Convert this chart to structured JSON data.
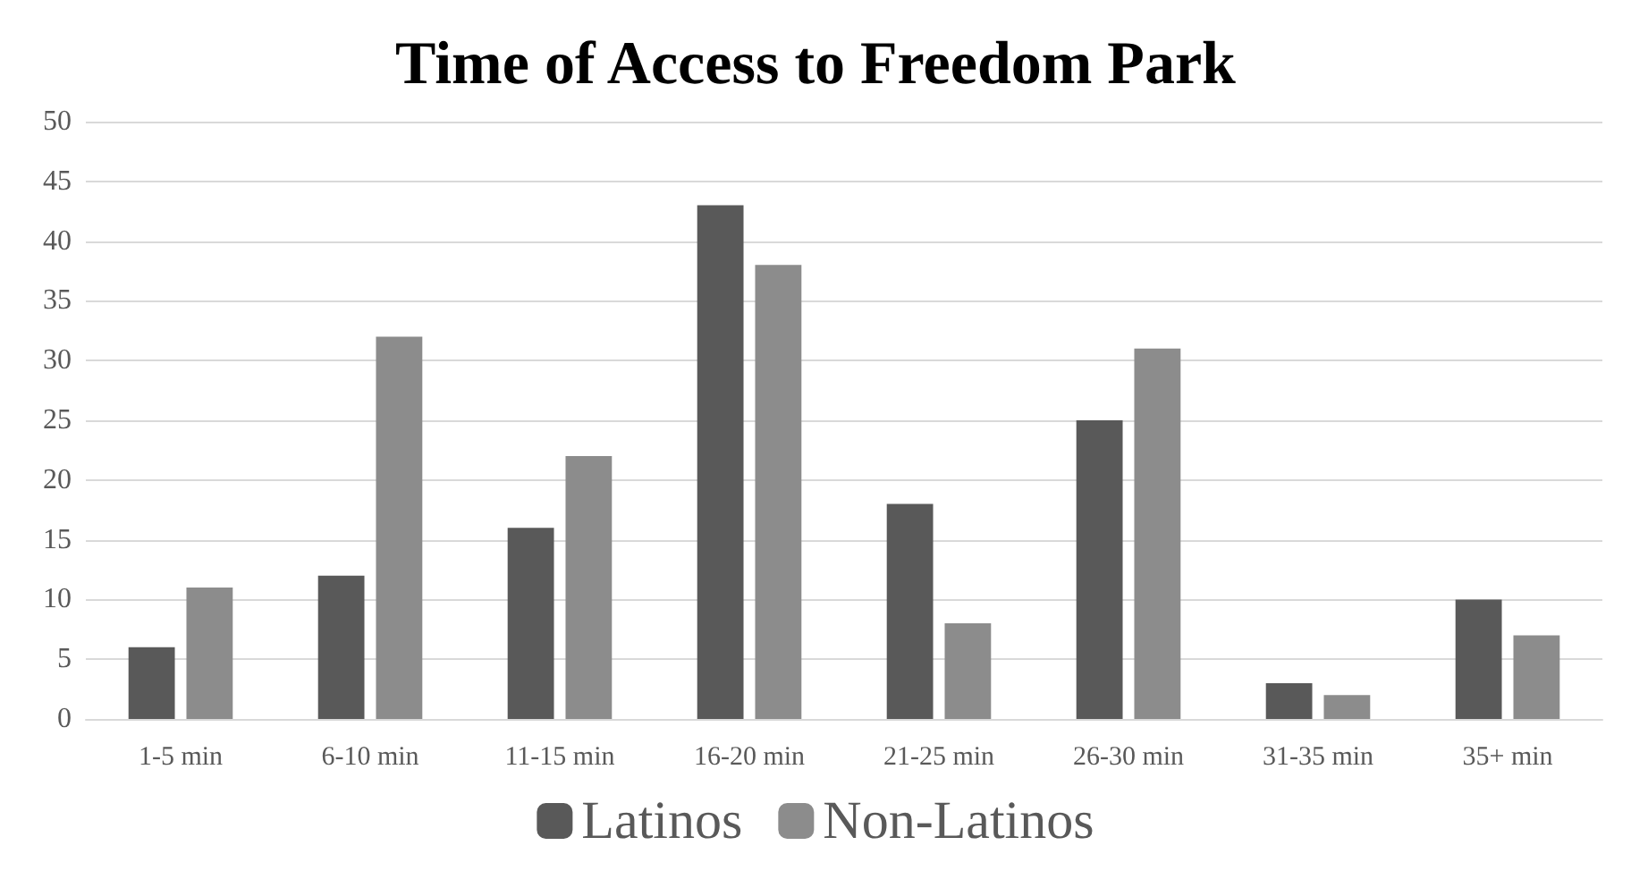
{
  "chart_data": {
    "type": "bar",
    "title": "Time of Access to Freedom Park",
    "categories": [
      "1-5 min",
      "6-10 min",
      "11-15 min",
      "16-20 min",
      "21-25 min",
      "26-30 min",
      "31-35 min",
      "35+ min"
    ],
    "series": [
      {
        "name": "Latinos",
        "color": "#595959",
        "values": [
          6,
          12,
          16,
          43,
          18,
          25,
          3,
          10
        ]
      },
      {
        "name": "Non-Latinos",
        "color": "#8c8c8c",
        "values": [
          11,
          32,
          22,
          38,
          8,
          31,
          2,
          7
        ]
      }
    ],
    "ylim": [
      0,
      50
    ],
    "yticks": [
      0,
      5,
      10,
      15,
      20,
      25,
      30,
      35,
      40,
      45,
      50
    ],
    "grid": "y",
    "legend": "bottom"
  }
}
